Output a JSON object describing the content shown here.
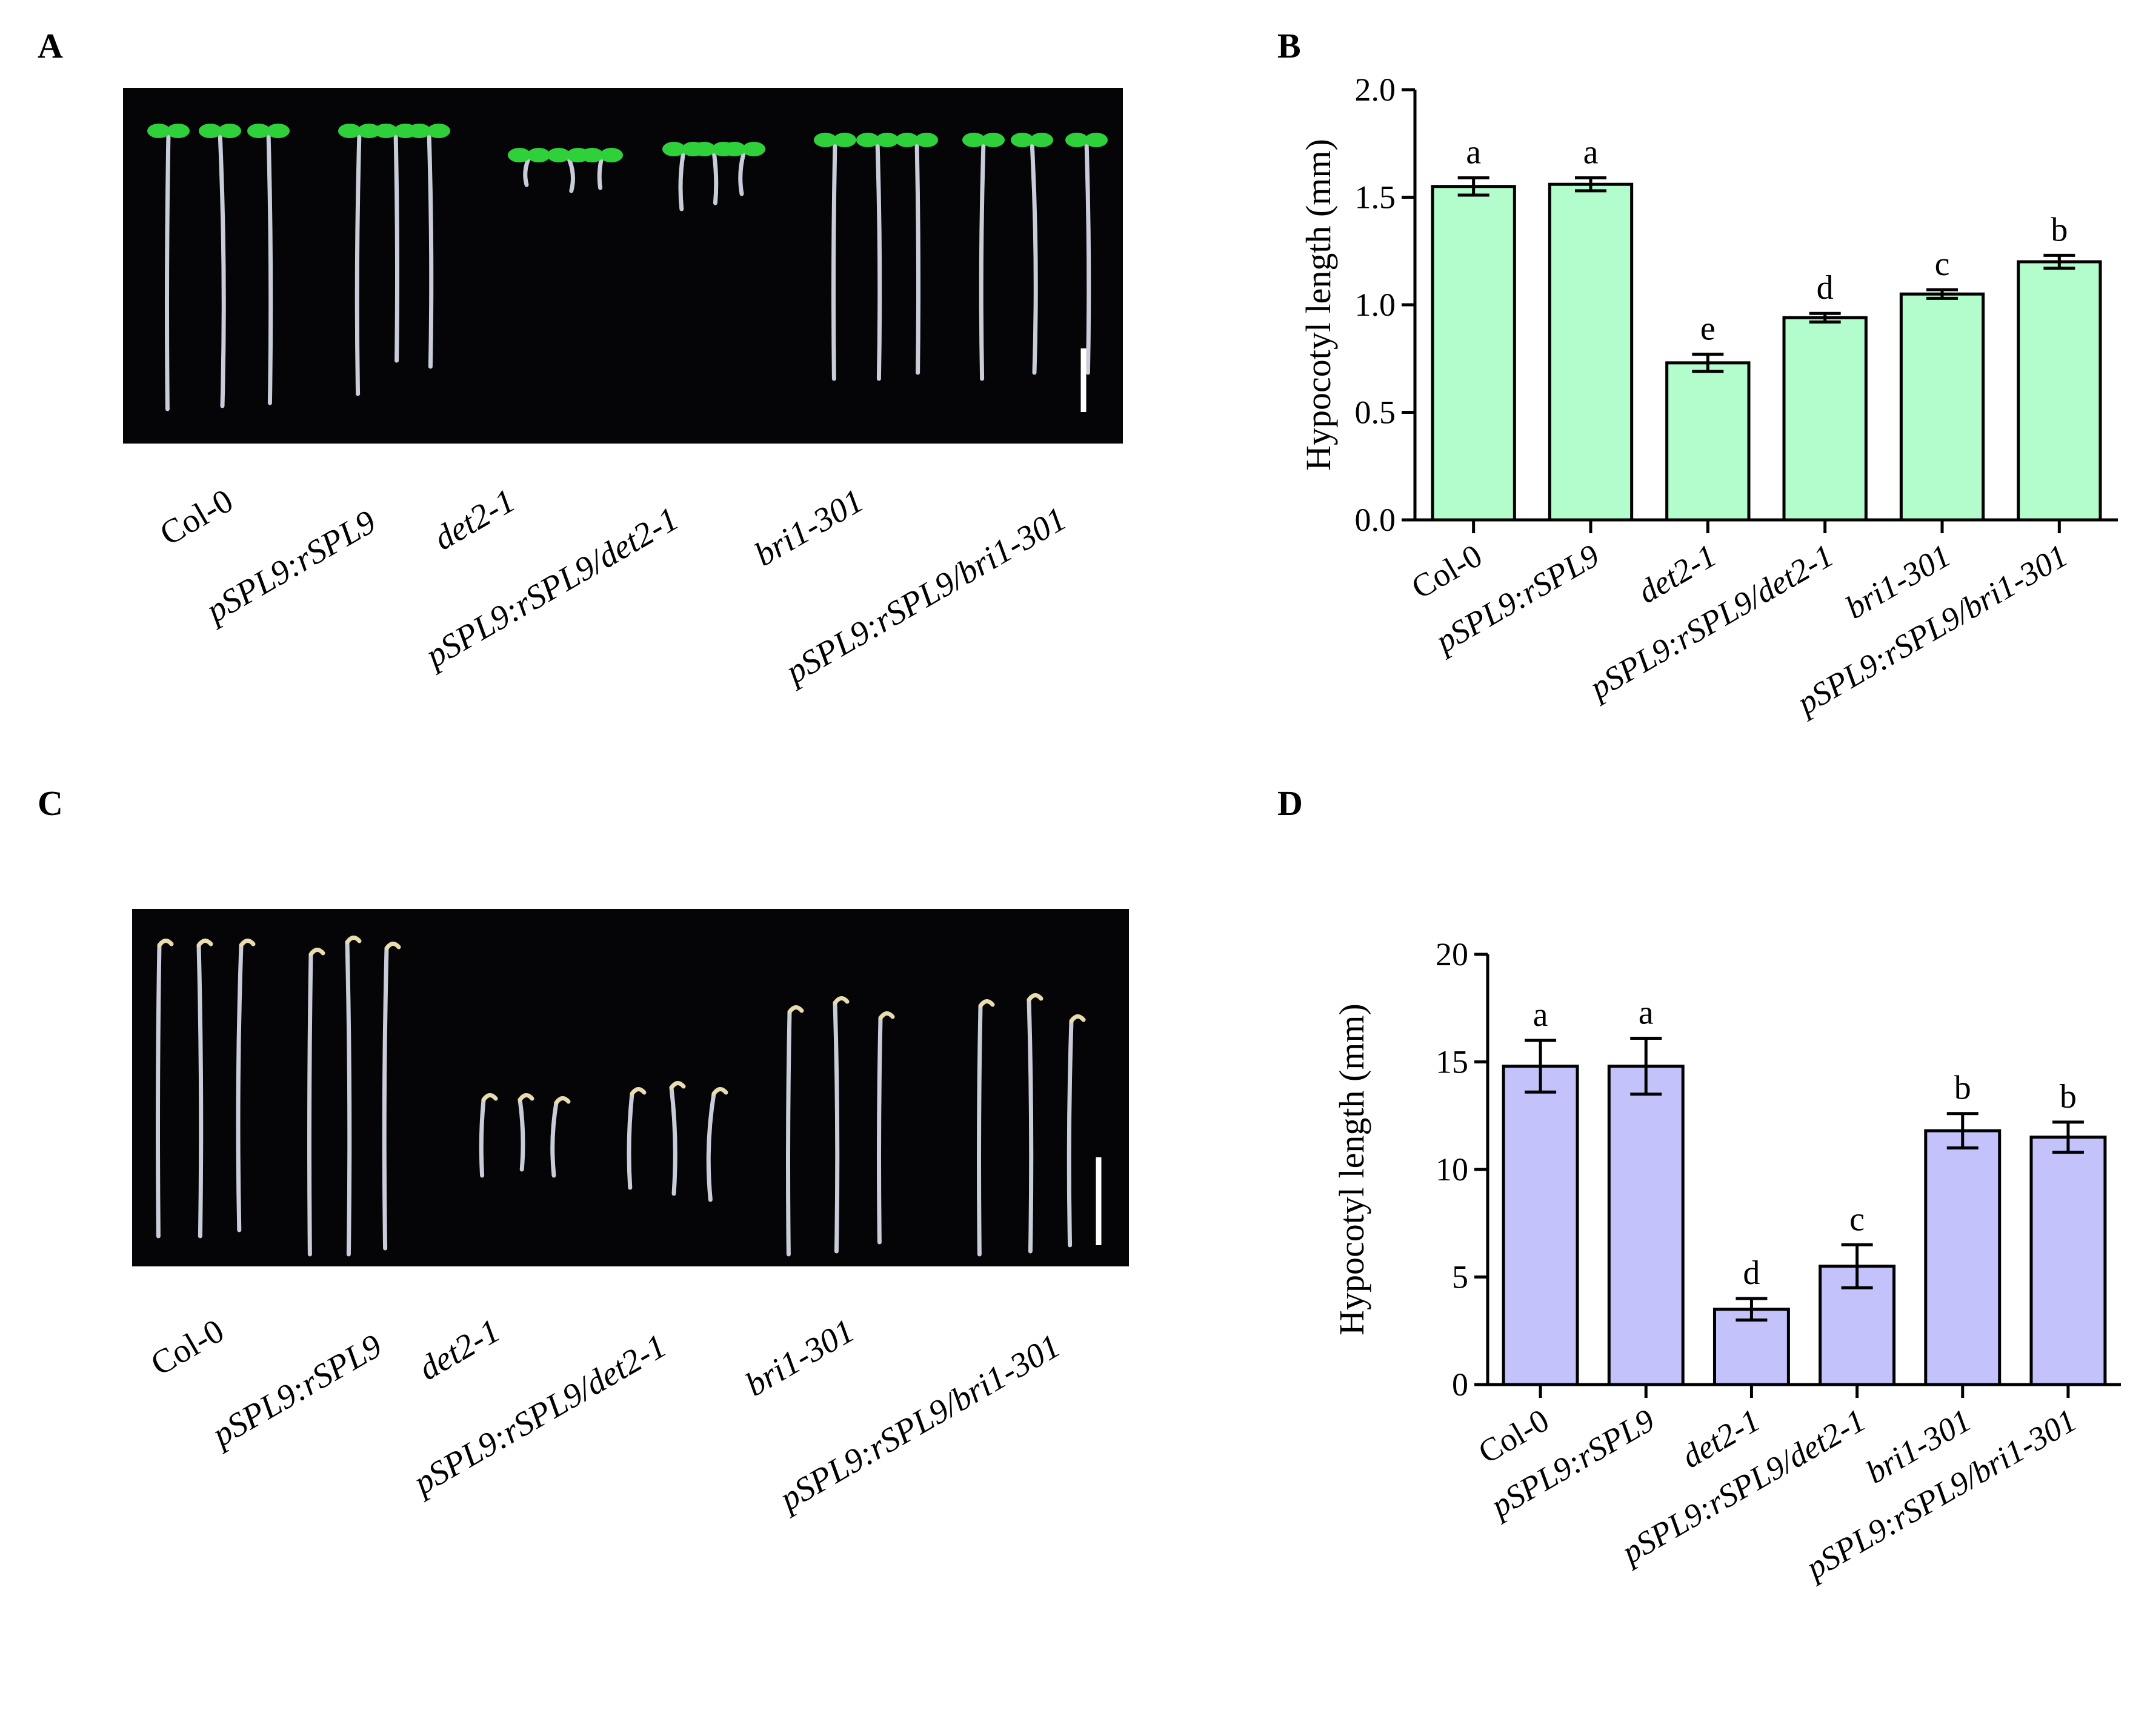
{
  "panels": {
    "a": {
      "letter": "A"
    },
    "b": {
      "letter": "B"
    },
    "c": {
      "letter": "C"
    },
    "d": {
      "letter": "D"
    }
  },
  "photo_a": {
    "labels": [
      "Col-0",
      "pSPL9:rSPL9",
      "det2-1",
      "pSPL9:rSPL9/det2-1",
      "bri1-301",
      "pSPL9:rSPL9/bri1-301"
    ]
  },
  "photo_c": {
    "labels": [
      "Col-0",
      "pSPL9:rSPL9",
      "det2-1",
      "pSPL9:rSPL9/det2-1",
      "bri1-301",
      "pSPL9:rSPL9/bri1-301"
    ]
  },
  "colors": {
    "chart_b_fill": "#b3fdcc",
    "chart_d_fill": "#c3c2fb",
    "photo_bg": "#050507",
    "cotyledon": "#2fd13a",
    "hypocotyl": "#dfe3f2"
  },
  "chart_data": [
    {
      "type": "bar",
      "panel": "B",
      "categories": [
        "Col-0",
        "pSPL9:rSPL9",
        "det2-1",
        "pSPL9:rSPL9/det2-1",
        "bri1-301",
        "pSPL9:rSPL9/bri1-301"
      ],
      "values": [
        1.55,
        1.56,
        0.73,
        0.94,
        1.05,
        1.2
      ],
      "errors": [
        0.04,
        0.03,
        0.04,
        0.02,
        0.02,
        0.03
      ],
      "significance": [
        "a",
        "a",
        "e",
        "d",
        "c",
        "b"
      ],
      "ylabel": "Hypocotyl length (mm)",
      "ylim": [
        0,
        2.0
      ],
      "yticks": [
        "0.0",
        "0.5",
        "1.0",
        "1.5",
        "2.0"
      ],
      "grid": false
    },
    {
      "type": "bar",
      "panel": "D",
      "categories": [
        "Col-0",
        "pSPL9:rSPL9",
        "det2-1",
        "pSPL9:rSPL9/det2-1",
        "bri1-301",
        "pSPL9:rSPL9/bri1-301"
      ],
      "values": [
        14.8,
        14.8,
        3.5,
        5.5,
        11.8,
        11.5
      ],
      "errors": [
        1.2,
        1.3,
        0.5,
        1.0,
        0.8,
        0.7
      ],
      "significance": [
        "a",
        "a",
        "d",
        "c",
        "b",
        "b"
      ],
      "ylabel": "Hypocotyl length (mm)",
      "ylim": [
        0,
        20
      ],
      "yticks": [
        "0",
        "5",
        "10",
        "15",
        "20"
      ],
      "grid": false
    }
  ]
}
